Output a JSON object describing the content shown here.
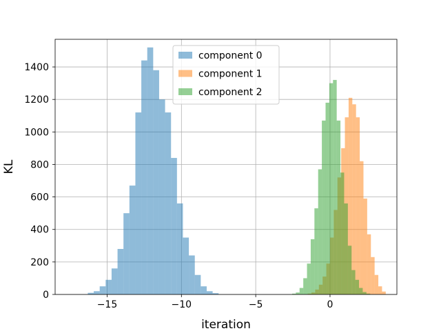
{
  "chart_data": {
    "type": "histogram",
    "xlabel": "iteration",
    "ylabel": "KL",
    "xlim": [
      -18.5,
      4.5
    ],
    "ylim": [
      0,
      1570
    ],
    "xticks": [
      -15,
      -10,
      -5,
      0
    ],
    "xtick_labels": [
      "−15",
      "−10",
      "−5",
      "0"
    ],
    "yticks": [
      0,
      200,
      400,
      600,
      800,
      1000,
      1200,
      1400
    ],
    "ytick_labels": [
      "0",
      "200",
      "400",
      "600",
      "800",
      "1000",
      "1200",
      "1400"
    ],
    "grid": true,
    "legend_position": "top-center",
    "alpha": 0.5,
    "series": [
      {
        "name": "component 0",
        "color": "#1f77b4",
        "bins": [
          [
            -16.3,
            -15.9,
            10
          ],
          [
            -15.9,
            -15.5,
            20
          ],
          [
            -15.5,
            -15.1,
            50
          ],
          [
            -15.1,
            -14.7,
            90
          ],
          [
            -14.7,
            -14.3,
            160
          ],
          [
            -14.3,
            -13.9,
            280
          ],
          [
            -13.9,
            -13.5,
            500
          ],
          [
            -13.5,
            -13.1,
            670
          ],
          [
            -13.1,
            -12.7,
            1120
          ],
          [
            -12.7,
            -12.3,
            1440
          ],
          [
            -12.3,
            -11.9,
            1520
          ],
          [
            -11.9,
            -11.5,
            1380
          ],
          [
            -11.5,
            -11.1,
            1200
          ],
          [
            -11.1,
            -10.7,
            1120
          ],
          [
            -10.7,
            -10.3,
            840
          ],
          [
            -10.3,
            -9.9,
            560
          ],
          [
            -9.9,
            -9.5,
            350
          ],
          [
            -9.5,
            -9.1,
            240
          ],
          [
            -9.1,
            -8.7,
            120
          ],
          [
            -8.7,
            -8.3,
            50
          ],
          [
            -8.3,
            -7.9,
            20
          ],
          [
            -7.9,
            -7.5,
            8
          ]
        ]
      },
      {
        "name": "component 1",
        "color": "#ff7f0e",
        "bins": [
          [
            -1.5,
            -1.25,
            5
          ],
          [
            -1.25,
            -1.0,
            12
          ],
          [
            -1.0,
            -0.75,
            30
          ],
          [
            -0.75,
            -0.5,
            60
          ],
          [
            -0.5,
            -0.25,
            110
          ],
          [
            -0.25,
            0.0,
            190
          ],
          [
            0.0,
            0.25,
            350
          ],
          [
            0.25,
            0.5,
            520
          ],
          [
            0.5,
            0.75,
            720
          ],
          [
            0.75,
            1.0,
            900
          ],
          [
            1.0,
            1.25,
            1090
          ],
          [
            1.25,
            1.5,
            1210
          ],
          [
            1.5,
            1.75,
            1170
          ],
          [
            1.75,
            2.0,
            1090
          ],
          [
            2.0,
            2.25,
            820
          ],
          [
            2.25,
            2.5,
            590
          ],
          [
            2.5,
            2.75,
            370
          ],
          [
            2.75,
            3.0,
            230
          ],
          [
            3.0,
            3.25,
            120
          ],
          [
            3.25,
            3.5,
            50
          ],
          [
            3.5,
            3.75,
            18
          ]
        ]
      },
      {
        "name": "component 2",
        "color": "#2ca02c",
        "bins": [
          [
            -2.55,
            -2.3,
            5
          ],
          [
            -2.3,
            -2.05,
            12
          ],
          [
            -2.05,
            -1.8,
            40
          ],
          [
            -1.8,
            -1.55,
            100
          ],
          [
            -1.55,
            -1.3,
            190
          ],
          [
            -1.3,
            -1.05,
            340
          ],
          [
            -1.05,
            -0.8,
            530
          ],
          [
            -0.8,
            -0.55,
            770
          ],
          [
            -0.55,
            -0.3,
            1070
          ],
          [
            -0.3,
            -0.05,
            1180
          ],
          [
            -0.05,
            0.2,
            1300
          ],
          [
            0.2,
            0.45,
            1320
          ],
          [
            0.45,
            0.7,
            1070
          ],
          [
            0.7,
            0.95,
            750
          ],
          [
            0.95,
            1.2,
            560
          ],
          [
            1.2,
            1.45,
            300
          ],
          [
            1.45,
            1.7,
            150
          ],
          [
            1.7,
            1.95,
            90
          ],
          [
            1.95,
            2.2,
            40
          ],
          [
            2.2,
            2.45,
            15
          ],
          [
            2.45,
            2.7,
            5
          ]
        ]
      }
    ]
  }
}
